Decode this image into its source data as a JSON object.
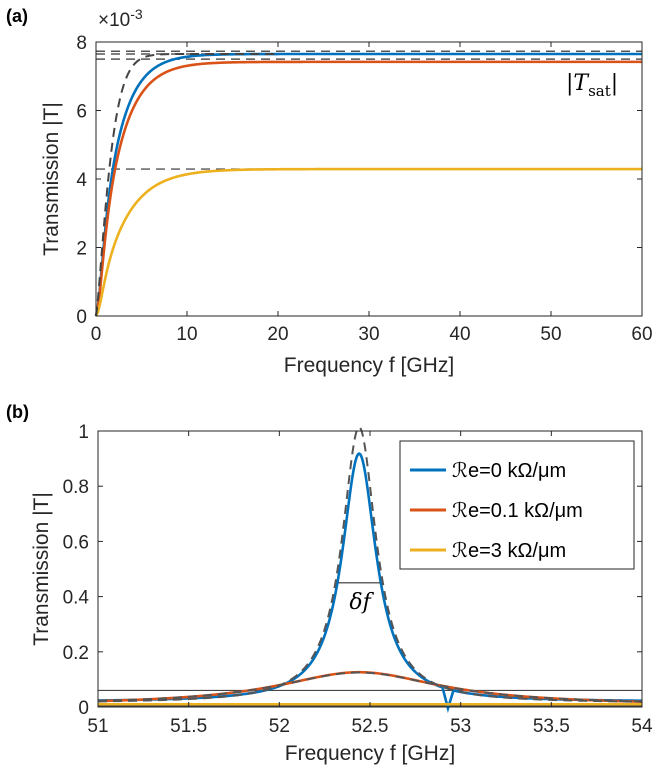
{
  "chart_data": [
    {
      "type": "line",
      "panel_label": "(a)",
      "xlabel": "Frequency f  [GHz]",
      "ylabel": "Transmission |T|",
      "y_multiplier_label": "×10",
      "y_multiplier_exp": "-3",
      "xlim": [
        0,
        60
      ],
      "ylim": [
        0,
        8
      ],
      "xticks": [
        0,
        10,
        20,
        30,
        40,
        50,
        60
      ],
      "yticks": [
        0,
        2,
        4,
        6,
        8
      ],
      "grid": false,
      "annotation": "|T_sat|",
      "annotation_main": "|T",
      "annotation_sub": "sat",
      "annotation_close": "|",
      "series": [
        {
          "color": "#0072BD",
          "saturation": 7.65,
          "rise_ghz": 2.2
        },
        {
          "color": "#D95319",
          "saturation": 7.42,
          "rise_ghz": 2.4
        },
        {
          "color": "#EDB120",
          "saturation": 4.29,
          "rise_ghz": 3.0
        }
      ],
      "reference_lines": [
        7.73,
        7.65,
        7.5,
        4.29
      ],
      "fit_curve": {
        "saturation": 7.65,
        "rise_ghz": 1.7
      }
    },
    {
      "type": "line",
      "panel_label": "(b)",
      "xlabel": "Frequency f  [GHz]",
      "ylabel": "Transmission |T|",
      "xlim": [
        51,
        54
      ],
      "ylim": [
        0,
        1
      ],
      "xticks": [
        51,
        51.5,
        52,
        52.5,
        53,
        53.5,
        54
      ],
      "xtick_labels": [
        "51",
        "51.5",
        "52",
        "52.5",
        "53",
        "53.5",
        "54"
      ],
      "yticks": [
        0,
        0.2,
        0.4,
        0.6,
        0.8,
        1
      ],
      "ytick_labels": [
        "0",
        "0.2",
        "0.4",
        "0.6",
        "0.8",
        "1"
      ],
      "grid": false,
      "legend_position": "top-right",
      "annotation": "δf",
      "resonance": {
        "f0": 52.44,
        "width_ghz": 0.115,
        "dip_f": 52.93
      },
      "series": [
        {
          "name": "ℛe=0 kΩ/μm",
          "color": "#0072BD",
          "peak": 0.9
        },
        {
          "name": "ℛe=0.1 kΩ/μm",
          "color": "#D95319",
          "peak": 0.12
        },
        {
          "name": "ℛe=3 kΩ/μm",
          "color": "#EDB120",
          "peak": 0.01
        }
      ],
      "dashed_fit": {
        "peak": 1.0
      },
      "reference_lines": [
        0.06,
        0.0
      ]
    }
  ]
}
